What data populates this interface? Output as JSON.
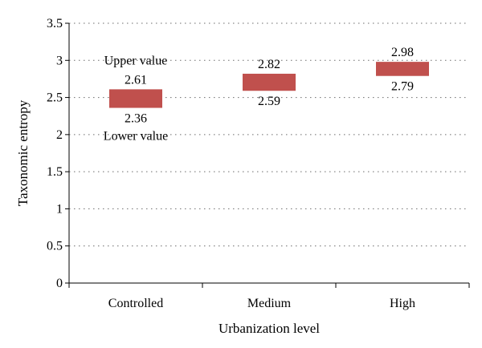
{
  "chart_data": {
    "type": "bar",
    "subtype": "floating-range",
    "xlabel": "Urbanization level",
    "ylabel": "Taxonomic entropy",
    "ylim": [
      0,
      3.5
    ],
    "y_ticks": [
      "0",
      "0.5",
      "1",
      "1.5",
      "2",
      "2.5",
      "3",
      "3.5"
    ],
    "y_tick_values": [
      0,
      0.5,
      1,
      1.5,
      2,
      2.5,
      3,
      3.5
    ],
    "grid": "horizontal-dotted",
    "categories": [
      "Controlled",
      "Medium",
      "High"
    ],
    "ranges": [
      {
        "low": 2.36,
        "high": 2.61,
        "low_label": "2.36",
        "high_label": "2.61"
      },
      {
        "low": 2.59,
        "high": 2.82,
        "low_label": "2.59",
        "high_label": "2.82"
      },
      {
        "low": 2.79,
        "high": 2.98,
        "low_label": "2.79",
        "high_label": "2.98"
      }
    ],
    "annotations": {
      "upper": "Upper value",
      "lower": "Lower value"
    },
    "bar_color": "#c0504d"
  }
}
